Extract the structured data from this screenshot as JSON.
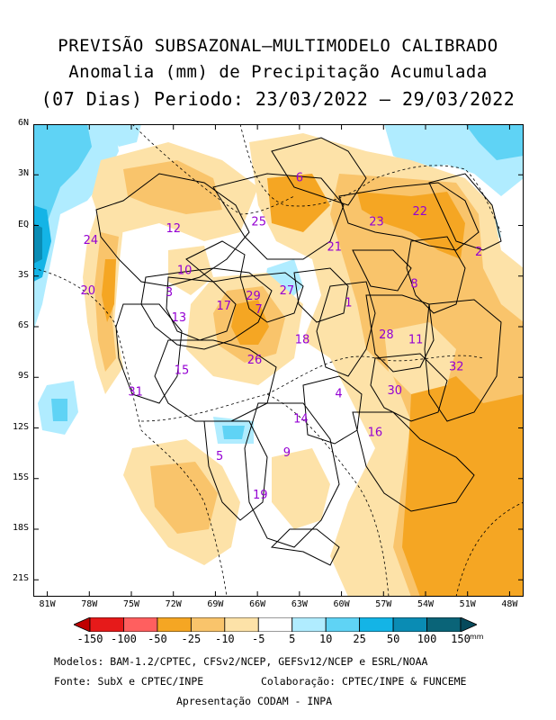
{
  "title": {
    "line1": "PREVISÃO SUBSAZONAL—MULTIMODELO CALIBRADO",
    "line2": "Anomalia (mm) de Precipitação Acumulada",
    "line3": "(07 Dias) Periodo: 23/03/2022 — 29/03/2022"
  },
  "map": {
    "lat_range": [
      -22,
      6
    ],
    "lon_range": [
      -82,
      -47
    ],
    "y_ticks": [
      "6N",
      "3N",
      "EQ",
      "3S",
      "6S",
      "9S",
      "12S",
      "15S",
      "18S",
      "21S"
    ],
    "x_ticks": [
      "81W",
      "78W",
      "75W",
      "72W",
      "69W",
      "66W",
      "63W",
      "60W",
      "57W",
      "54W",
      "51W",
      "48W"
    ],
    "region_label_color": "#9400d3",
    "regions": [
      {
        "label": "1",
        "lon": -59.5,
        "lat": -4.6
      },
      {
        "label": "2",
        "lon": -50.2,
        "lat": -1.6
      },
      {
        "label": "3",
        "lon": -72.3,
        "lat": -4.0
      },
      {
        "label": "4",
        "lon": -60.2,
        "lat": -10.0
      },
      {
        "label": "5",
        "lon": -68.7,
        "lat": -13.7
      },
      {
        "label": "6",
        "lon": -63.0,
        "lat": 2.8
      },
      {
        "label": "7",
        "lon": -65.9,
        "lat": -5.0
      },
      {
        "label": "8",
        "lon": -54.8,
        "lat": -3.5
      },
      {
        "label": "9",
        "lon": -63.9,
        "lat": -13.5
      },
      {
        "label": "10",
        "lon": -71.2,
        "lat": -2.7
      },
      {
        "label": "11",
        "lon": -54.7,
        "lat": -6.8
      },
      {
        "label": "12",
        "lon": -72.0,
        "lat": -0.2
      },
      {
        "label": "13",
        "lon": -71.6,
        "lat": -5.5
      },
      {
        "label": "14",
        "lon": -62.9,
        "lat": -11.5
      },
      {
        "label": "15",
        "lon": -71.4,
        "lat": -8.6
      },
      {
        "label": "16",
        "lon": -57.6,
        "lat": -12.3
      },
      {
        "label": "17",
        "lon": -68.4,
        "lat": -4.8
      },
      {
        "label": "18",
        "lon": -62.8,
        "lat": -6.8
      },
      {
        "label": "19",
        "lon": -65.8,
        "lat": -16.0
      },
      {
        "label": "20",
        "lon": -78.1,
        "lat": -3.9
      },
      {
        "label": "21",
        "lon": -60.5,
        "lat": -1.3
      },
      {
        "label": "22",
        "lon": -54.4,
        "lat": 0.8
      },
      {
        "label": "23",
        "lon": -57.5,
        "lat": 0.2
      },
      {
        "label": "24",
        "lon": -77.9,
        "lat": -0.9
      },
      {
        "label": "25",
        "lon": -65.9,
        "lat": 0.2
      },
      {
        "label": "26",
        "lon": -66.2,
        "lat": -8.0
      },
      {
        "label": "27",
        "lon": -63.9,
        "lat": -3.9
      },
      {
        "label": "28",
        "lon": -56.8,
        "lat": -6.5
      },
      {
        "label": "29",
        "lon": -66.3,
        "lat": -4.2
      },
      {
        "label": "30",
        "lon": -56.2,
        "lat": -9.8
      },
      {
        "label": "31",
        "lon": -74.7,
        "lat": -9.9
      },
      {
        "label": "32",
        "lon": -51.8,
        "lat": -8.4
      }
    ]
  },
  "colorbar": {
    "labels": [
      "-150",
      "-100",
      "-50",
      "-25",
      "-10",
      "-5",
      "5",
      "10",
      "25",
      "50",
      "100",
      "150"
    ],
    "colors": [
      "#c00000",
      "#e61a1a",
      "#ff5f5f",
      "#f5a623",
      "#f9c46b",
      "#fde2a8",
      "#ffffff",
      "#b0ecff",
      "#5fd3f5",
      "#14b4e6",
      "#0a8cb4",
      "#0a6478",
      "#064a5c"
    ],
    "unit": "mm"
  },
  "footer": {
    "line1": "Modelos: BAM-1.2/CPTEC, CFSv2/NCEP, GEFSv12/NCEP e ESRL/NOAA",
    "line2a": "Fonte: SubX e CPTEC/INPE",
    "line2b": "Colaboração: CPTEC/INPE & FUNCEME",
    "line3": "Apresentação CODAM - INPA"
  }
}
